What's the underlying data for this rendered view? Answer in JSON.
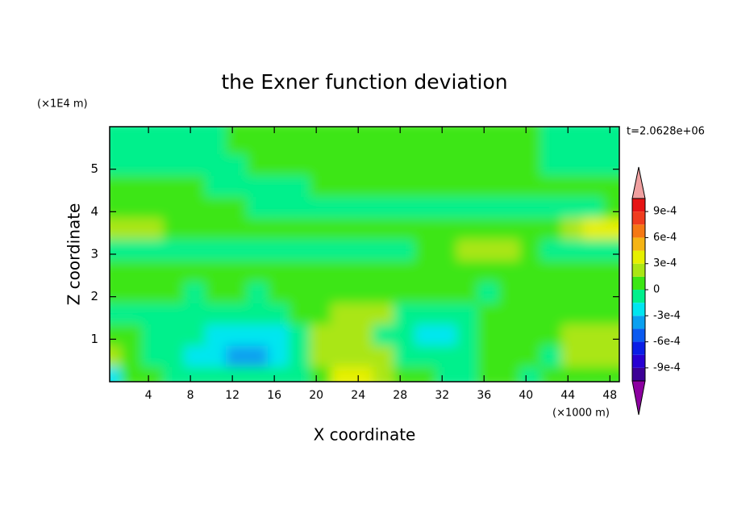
{
  "chart_data": {
    "type": "contour",
    "title": "the Exner function deviation",
    "x_label": "X coordinate",
    "y_label": "Z coordinate",
    "x_unit": "(×1000 m)",
    "y_unit": "(×1E4 m)",
    "annotation": "t=2.0628e+06",
    "xlim": [
      0.3,
      48.9
    ],
    "ylim": [
      0,
      6
    ],
    "xticks": [
      4,
      8,
      12,
      16,
      20,
      24,
      28,
      32,
      36,
      40,
      44,
      48
    ],
    "yticks": [
      1,
      2,
      3,
      4,
      5
    ],
    "x": [
      1,
      3,
      5,
      7,
      9,
      11,
      13,
      15,
      17,
      19,
      21,
      23,
      25,
      27,
      29,
      31,
      33,
      35,
      37,
      39,
      41,
      43,
      45,
      47,
      49
    ],
    "z": [
      0.25,
      0.75,
      1.25,
      1.75,
      2.25,
      2.75,
      3.25,
      3.75,
      4.25,
      4.75,
      5.25,
      5.75
    ],
    "field": [
      [
        -0.0002,
        7e-05,
        7e-05,
        -0.0001,
        -0.0001,
        -0.0001,
        -0.0001,
        -0.0001,
        -0.0001,
        -0.0001,
        7e-05,
        0.00035,
        0.00035,
        0.0002,
        7e-05,
        7e-05,
        -0.0001,
        -0.0001,
        7e-05,
        7e-05,
        -0.0001,
        7e-05,
        7e-05,
        7e-05,
        7e-05
      ],
      [
        0.0002,
        7e-05,
        -0.0001,
        -0.0001,
        -0.0002,
        -0.0002,
        -0.00035,
        -0.00035,
        -0.0002,
        -0.0001,
        0.0002,
        0.0002,
        0.0002,
        0.0002,
        -0.0001,
        -0.0001,
        -0.0001,
        -0.0001,
        7e-05,
        7e-05,
        7e-05,
        -0.0001,
        0.0002,
        0.0002,
        0.0002
      ],
      [
        7e-05,
        7e-05,
        -0.0001,
        -0.0001,
        -0.0001,
        -0.0002,
        -0.0002,
        -0.0002,
        -0.0002,
        -0.0001,
        0.0002,
        0.0002,
        0.0002,
        -0.0001,
        -0.0001,
        -0.0002,
        -0.0002,
        -0.0001,
        7e-05,
        7e-05,
        7e-05,
        7e-05,
        0.0002,
        0.0002,
        0.0002
      ],
      [
        -0.0001,
        -0.0001,
        -0.0001,
        -0.0001,
        -0.0001,
        -0.0001,
        -0.0001,
        -0.0001,
        -0.0001,
        7e-05,
        7e-05,
        0.0002,
        0.0002,
        0.0002,
        -0.0001,
        -0.0001,
        -0.0001,
        -0.0001,
        7e-05,
        7e-05,
        7e-05,
        7e-05,
        7e-05,
        7e-05,
        7e-05
      ],
      [
        7e-05,
        7e-05,
        7e-05,
        7e-05,
        -0.0001,
        7e-05,
        7e-05,
        -0.0001,
        7e-05,
        7e-05,
        7e-05,
        7e-05,
        7e-05,
        7e-05,
        7e-05,
        7e-05,
        7e-05,
        7e-05,
        -0.0001,
        7e-05,
        7e-05,
        7e-05,
        7e-05,
        7e-05,
        7e-05
      ],
      [
        7e-05,
        7e-05,
        7e-05,
        7e-05,
        7e-05,
        7e-05,
        7e-05,
        7e-05,
        7e-05,
        7e-05,
        7e-05,
        7e-05,
        7e-05,
        7e-05,
        7e-05,
        7e-05,
        7e-05,
        7e-05,
        7e-05,
        7e-05,
        7e-05,
        7e-05,
        7e-05,
        7e-05,
        7e-05
      ],
      [
        -0.0001,
        -0.0001,
        -0.0001,
        -0.0001,
        -0.0001,
        -0.0001,
        -0.0001,
        -0.0001,
        -0.0001,
        -0.0001,
        -0.0001,
        -0.0001,
        -0.0001,
        -0.0001,
        -0.0001,
        7e-05,
        7e-05,
        0.0002,
        0.0002,
        0.0002,
        7e-05,
        -0.0001,
        -0.0001,
        -0.0001,
        -0.0001
      ],
      [
        0.0002,
        0.0002,
        0.0002,
        7e-05,
        7e-05,
        7e-05,
        7e-05,
        7e-05,
        7e-05,
        7e-05,
        7e-05,
        7e-05,
        7e-05,
        7e-05,
        7e-05,
        7e-05,
        7e-05,
        7e-05,
        7e-05,
        7e-05,
        7e-05,
        7e-05,
        0.0002,
        0.00035,
        0.00035
      ],
      [
        7e-05,
        7e-05,
        7e-05,
        7e-05,
        7e-05,
        7e-05,
        7e-05,
        -0.0001,
        -0.0001,
        -0.0001,
        -0.0001,
        -0.0001,
        -0.0001,
        -0.0001,
        -0.0001,
        -0.0001,
        -0.0001,
        -0.0001,
        -0.0001,
        -0.0001,
        -0.0001,
        -0.0001,
        -0.0001,
        -0.0001,
        7e-05
      ],
      [
        7e-05,
        7e-05,
        7e-05,
        7e-05,
        7e-05,
        -0.0001,
        -0.0001,
        -0.0001,
        -0.0001,
        -0.0001,
        7e-05,
        7e-05,
        7e-05,
        7e-05,
        7e-05,
        7e-05,
        7e-05,
        7e-05,
        7e-05,
        7e-05,
        7e-05,
        7e-05,
        7e-05,
        7e-05,
        7e-05
      ],
      [
        -0.0001,
        -0.0001,
        -0.0001,
        -0.0001,
        -0.0001,
        -0.0001,
        -0.0001,
        7e-05,
        7e-05,
        7e-05,
        7e-05,
        7e-05,
        7e-05,
        7e-05,
        7e-05,
        7e-05,
        7e-05,
        7e-05,
        7e-05,
        7e-05,
        7e-05,
        -0.0001,
        -0.0001,
        -0.0001,
        -0.0001
      ],
      [
        -0.0001,
        -0.0001,
        -0.0001,
        -0.0001,
        -0.0001,
        -0.0001,
        7e-05,
        7e-05,
        7e-05,
        7e-05,
        7e-05,
        7e-05,
        7e-05,
        7e-05,
        7e-05,
        7e-05,
        7e-05,
        7e-05,
        7e-05,
        7e-05,
        7e-05,
        -0.0001,
        -0.0001,
        -0.0001,
        -0.0001
      ]
    ],
    "levels": [
      -0.00105,
      -0.0009,
      -0.00075,
      -0.0006,
      -0.00045,
      -0.0003,
      -0.00015,
      0,
      0.00015,
      0.0003,
      0.00045,
      0.0006,
      0.00075,
      0.0009,
      0.00105
    ],
    "colors": [
      "#3c0096",
      "#2800d2",
      "#0a1ee6",
      "#0a5af0",
      "#0aa0f0",
      "#00e6f0",
      "#00f08c",
      "#3ce614",
      "#aae614",
      "#e6f000",
      "#f5b414",
      "#f57814",
      "#f03c1e",
      "#e61414"
    ],
    "extend_colors": [
      "#8c00a0",
      "#f0a0a0"
    ],
    "cbar_ticks": [
      {
        "value": 0.0009,
        "label": "9e-4"
      },
      {
        "value": 0.0006,
        "label": "6e-4"
      },
      {
        "value": 0.0003,
        "label": "3e-4"
      },
      0,
      {
        "value": -0.0003,
        "label": "-3e-4"
      },
      {
        "value": -0.0006,
        "label": "-6e-4"
      },
      {
        "value": -0.0009,
        "label": "-9e-4"
      }
    ]
  }
}
